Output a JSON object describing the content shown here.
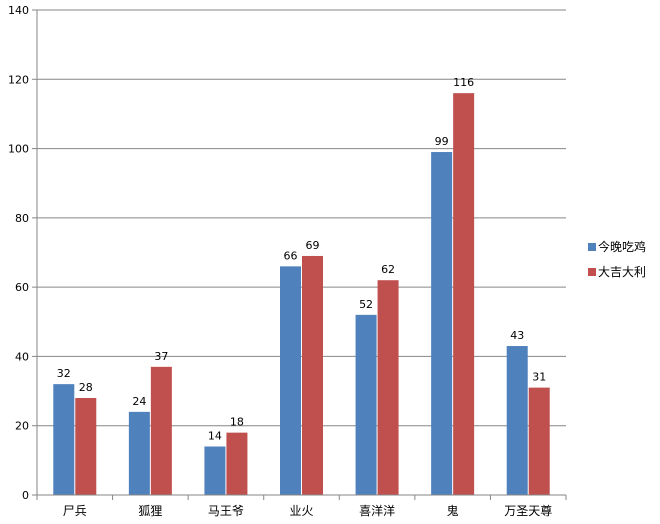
{
  "chart_data": {
    "type": "bar",
    "categories": [
      "尸兵",
      "狐狸",
      "马王爷",
      "业火",
      "喜洋洋",
      "鬼",
      "万圣天尊"
    ],
    "series": [
      {
        "name": "今晚吃鸡",
        "color": "#4F81BD",
        "values": [
          32,
          24,
          14,
          66,
          52,
          99,
          43
        ]
      },
      {
        "name": "大吉大利",
        "color": "#C0504D",
        "values": [
          28,
          37,
          18,
          69,
          62,
          116,
          31
        ]
      }
    ],
    "yticks": [
      "0",
      "20",
      "40",
      "60",
      "80",
      "100",
      "120",
      "140"
    ],
    "ylim": [
      0,
      140
    ],
    "grid": true,
    "legend": "right",
    "data_labels": true
  }
}
